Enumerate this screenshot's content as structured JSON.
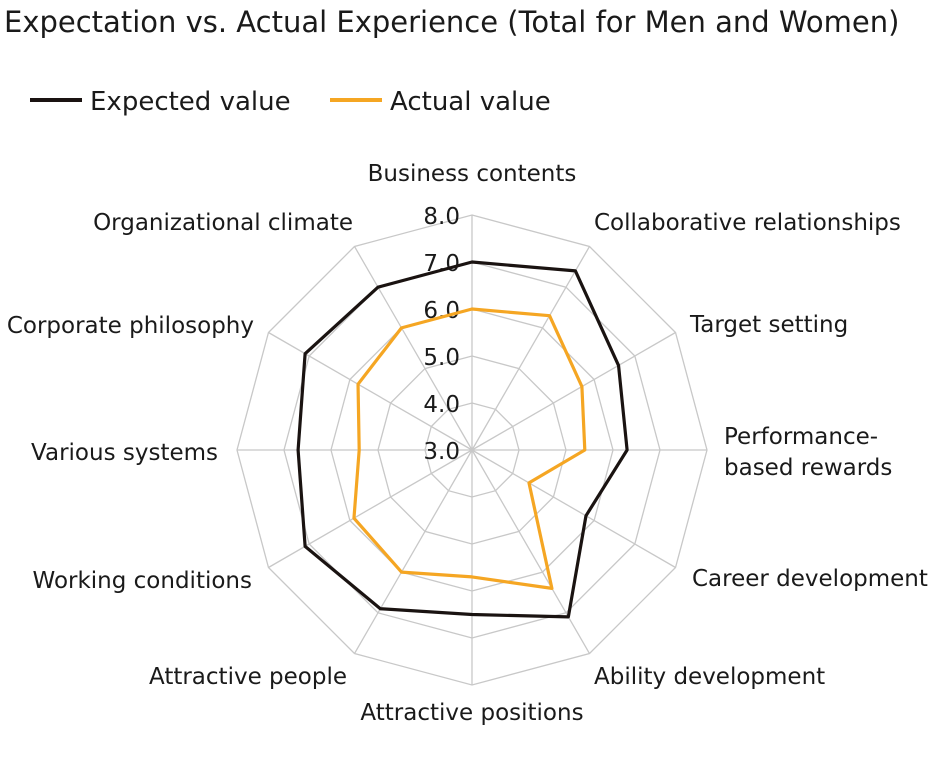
{
  "chart_data": {
    "type": "radar",
    "title": "Expectation vs. Actual Experience (Total for Men and Women)",
    "categories": [
      "Business contents",
      "Collaborative relationships",
      "Target setting",
      "Performance-based rewards",
      "Career development",
      "Ability development",
      "Attractive positions",
      "Attractive people",
      "Working conditions",
      "Various systems",
      "Corporate philosophy",
      "Organizational climate"
    ],
    "series": [
      {
        "name": "Expected value",
        "color": "#1a1311",
        "values": [
          7.0,
          7.4,
          6.6,
          6.3,
          5.8,
          7.1,
          6.5,
          6.9,
          7.1,
          6.7,
          7.1,
          7.0
        ]
      },
      {
        "name": "Actual value",
        "color": "#f5a623",
        "values": [
          6.0,
          6.3,
          5.7,
          5.4,
          4.4,
          6.4,
          5.7,
          6.0,
          5.9,
          5.4,
          5.8,
          6.0
        ]
      }
    ],
    "rlim": [
      3.0,
      8.0
    ],
    "ticks": [
      "3.0",
      "4.0",
      "5.0",
      "6.0",
      "7.0",
      "8.0"
    ],
    "grid": true,
    "legend_position": "top-left"
  }
}
